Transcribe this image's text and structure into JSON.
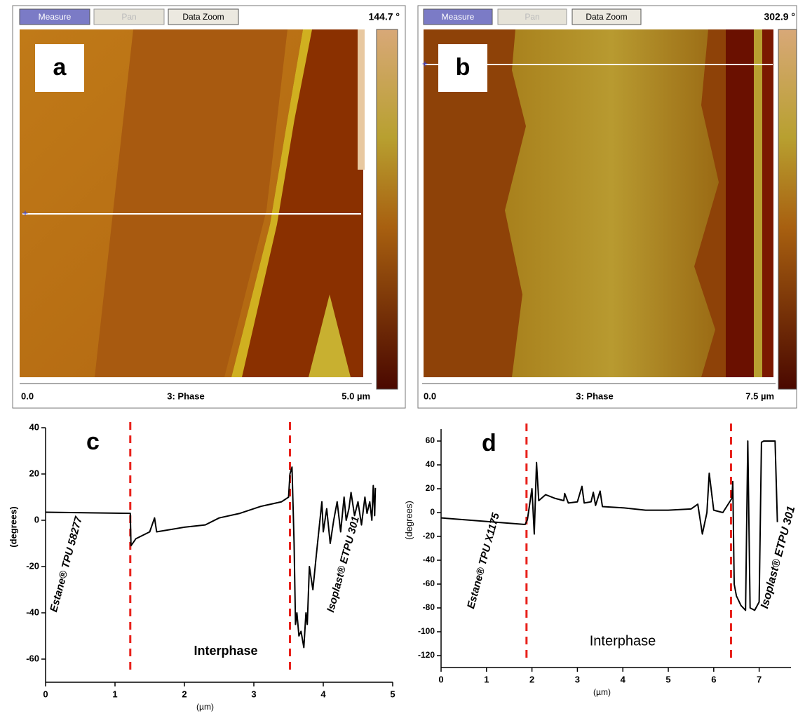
{
  "panels": [
    {
      "buttons": [
        "Measure",
        "Pan",
        "Data Zoom"
      ],
      "max_label": "144.7 °",
      "letter": "a",
      "scale_start": "0.0",
      "channel": "3: Phase",
      "scale_end": "5.0 µm"
    },
    {
      "buttons": [
        "Measure",
        "Pan",
        "Data Zoom"
      ],
      "max_label": "302.9 °",
      "letter": "b",
      "scale_start": "0.0",
      "channel": "3: Phase",
      "scale_end": "7.5 µm"
    }
  ],
  "chart_data": [
    {
      "type": "line",
      "letter": "c",
      "y_label": "(degrees)",
      "x_label": "(µm)",
      "xlim": [
        0,
        5
      ],
      "ylim": [
        -70,
        40
      ],
      "xticks": [
        0,
        1,
        2,
        3,
        4,
        5
      ],
      "yticks": [
        -60,
        -40,
        -20,
        0,
        20,
        40
      ],
      "boundaries": [
        1.22,
        3.52
      ],
      "boundary_color": "#e8201a",
      "series": [
        {
          "color": "#000000",
          "x": [
            0,
            1.22,
            1.23,
            1.3,
            1.5,
            1.57,
            1.6,
            2.0,
            2.3,
            2.5,
            2.8,
            3.1,
            3.4,
            3.5,
            3.52,
            3.55,
            3.58,
            3.6,
            3.62,
            3.65,
            3.68,
            3.72,
            3.75,
            3.77,
            3.8,
            3.85,
            3.9,
            3.98,
            4.0,
            4.05,
            4.1,
            4.15,
            4.2,
            4.25,
            4.3,
            4.33,
            4.37,
            4.4,
            4.45,
            4.5,
            4.55,
            4.6,
            4.63,
            4.67,
            4.7,
            4.72,
            4.74,
            4.75
          ],
          "values": [
            3.5,
            3,
            -11,
            -8,
            -5,
            1,
            -5,
            -3,
            -2,
            1,
            3,
            6,
            8,
            10,
            20,
            23,
            -10,
            -45,
            -40,
            -50,
            -48,
            -55,
            -40,
            -45,
            -20,
            -30,
            -15,
            8,
            -5,
            5,
            -10,
            0,
            8,
            -5,
            10,
            0,
            5,
            12,
            2,
            8,
            -2,
            10,
            3,
            8,
            0,
            15,
            2,
            14
          ]
        }
      ],
      "annotations": [
        "Estane® TPU 58277",
        "Interphase",
        "Isoplast® ETPU 301"
      ]
    },
    {
      "type": "line",
      "letter": "d",
      "y_label": "(degrees)",
      "x_label": "(µm)",
      "xlim": [
        0,
        7.7
      ],
      "ylim": [
        -130,
        70
      ],
      "xticks": [
        0,
        1,
        2,
        3,
        4,
        5,
        6,
        7
      ],
      "yticks": [
        -120,
        -100,
        -80,
        -60,
        -40,
        -20,
        0,
        20,
        40,
        60
      ],
      "boundaries": [
        1.88,
        6.38
      ],
      "boundary_color": "#e8201a",
      "series": [
        {
          "color": "#000000",
          "x": [
            0,
            1.85,
            1.9,
            2.0,
            2.05,
            2.1,
            2.15,
            2.3,
            2.5,
            2.7,
            2.72,
            2.8,
            3.0,
            3.1,
            3.15,
            3.3,
            3.35,
            3.4,
            3.5,
            3.55,
            4.0,
            4.5,
            5.0,
            5.5,
            5.65,
            5.75,
            5.85,
            5.9,
            6.0,
            6.2,
            6.4,
            6.42,
            6.45,
            6.5,
            6.6,
            6.7,
            6.75,
            6.8,
            6.9,
            7.0,
            7.05,
            7.1,
            7.35,
            7.4
          ],
          "values": [
            -4.5,
            -10,
            -6,
            20,
            -18,
            42,
            10,
            15,
            12,
            10,
            16,
            8,
            9,
            22,
            8,
            9,
            17,
            6,
            18,
            5,
            4,
            2,
            2,
            3,
            7,
            -18,
            0,
            33,
            2,
            0,
            12,
            26,
            -60,
            -70,
            -78,
            -82,
            60,
            -80,
            -82,
            -75,
            59,
            60,
            60,
            -8
          ]
        }
      ],
      "annotations": [
        "Estane® TPU X1175",
        "Interphase",
        "Isoplast® ETPU 301"
      ]
    }
  ]
}
